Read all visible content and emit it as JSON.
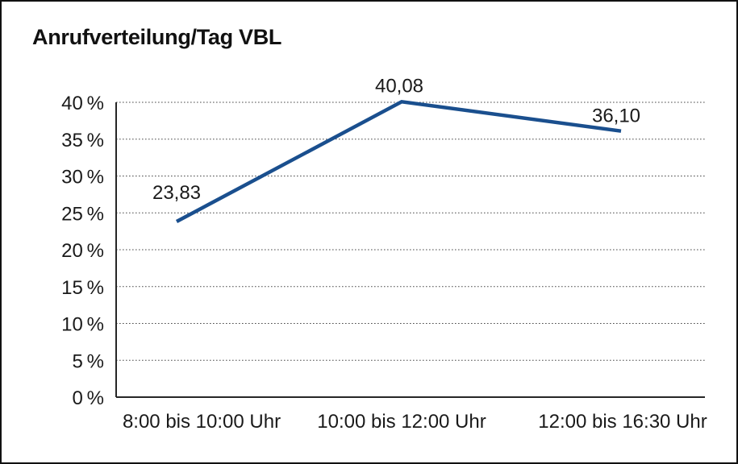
{
  "chart_data": {
    "type": "line",
    "title": "Anrufverteilung/Tag VBL",
    "categories": [
      "8:00 bis 10:00 Uhr",
      "10:00 bis 12:00 Uhr",
      "12:00 bis 16:30 Uhr"
    ],
    "values": [
      23.83,
      40.08,
      36.1
    ],
    "data_labels": [
      "23,83",
      "40,08",
      "36,10"
    ],
    "xlabel": "",
    "ylabel": "",
    "ylim": [
      0,
      40
    ],
    "ystep": 5,
    "ytick_labels": [
      "0 %",
      "5 %",
      "10 %",
      "15 %",
      "20 %",
      "25 %",
      "30 %",
      "35 %",
      "40 %"
    ],
    "grid": true,
    "legend": false,
    "line_color": "#1a4f8e"
  }
}
